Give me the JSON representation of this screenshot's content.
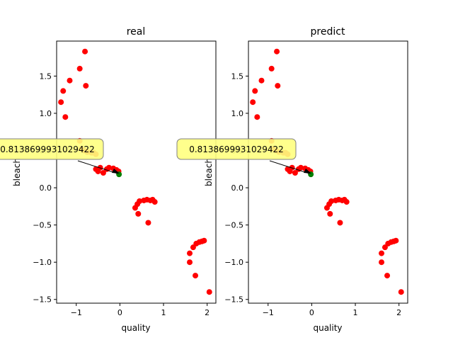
{
  "chart_data": [
    {
      "type": "scatter",
      "title": "real",
      "xlabel": "quality",
      "ylabel": "bleach",
      "xlim": [
        -1.45,
        2.2
      ],
      "ylim": [
        -1.55,
        1.97
      ],
      "xticks": [
        -1,
        0,
        1,
        2
      ],
      "xtick_labels": [
        "−1",
        "0",
        "1",
        "2"
      ],
      "yticks": [
        -1.5,
        -1.0,
        -0.5,
        0.0,
        0.5,
        1.0,
        1.5
      ],
      "ytick_labels": [
        "−1.5",
        "−1.0",
        "−0.5",
        "0.0",
        "0.5",
        "1.0",
        "1.5"
      ],
      "grid": false,
      "series": [
        {
          "color": "#ff0000",
          "points": [
            [
              -1.35,
              1.15
            ],
            [
              -1.3,
              1.3
            ],
            [
              -1.25,
              0.95
            ],
            [
              -1.15,
              1.44
            ],
            [
              -0.92,
              1.6
            ],
            [
              -0.8,
              1.83
            ],
            [
              -0.78,
              1.37
            ],
            [
              -0.92,
              0.63
            ],
            [
              -0.88,
              0.52
            ],
            [
              -0.82,
              0.5
            ],
            [
              -0.75,
              0.48
            ],
            [
              -0.65,
              0.47
            ],
            [
              -0.6,
              0.47
            ],
            [
              -0.55,
              0.45
            ],
            [
              -0.55,
              0.25
            ],
            [
              -0.5,
              0.22
            ],
            [
              -0.45,
              0.27
            ],
            [
              -0.38,
              0.2
            ],
            [
              -0.3,
              0.25
            ],
            [
              -0.25,
              0.27
            ],
            [
              -0.15,
              0.26
            ],
            [
              -0.08,
              0.24
            ],
            [
              -0.03,
              0.22
            ],
            [
              0.35,
              -0.27
            ],
            [
              0.4,
              -0.22
            ],
            [
              0.42,
              -0.35
            ],
            [
              0.45,
              -0.18
            ],
            [
              0.55,
              -0.17
            ],
            [
              0.62,
              -0.16
            ],
            [
              0.7,
              -0.17
            ],
            [
              0.75,
              -0.16
            ],
            [
              0.8,
              -0.19
            ],
            [
              0.65,
              -0.47
            ],
            [
              1.6,
              -0.88
            ],
            [
              1.6,
              -1.0
            ],
            [
              1.68,
              -0.8
            ],
            [
              1.73,
              -1.18
            ],
            [
              1.75,
              -0.75
            ],
            [
              1.82,
              -0.73
            ],
            [
              1.88,
              -0.72
            ],
            [
              1.93,
              -0.71
            ],
            [
              2.05,
              -1.4
            ]
          ]
        },
        {
          "color": "#008000",
          "points": [
            [
              -0.02,
              0.18
            ]
          ]
        }
      ],
      "annotation": {
        "text": "0.8138699931029422",
        "x": -0.02,
        "y": 0.18
      }
    },
    {
      "type": "scatter",
      "title": "predict",
      "xlabel": "quality",
      "ylabel": "bleach",
      "xlim": [
        -1.45,
        2.2
      ],
      "ylim": [
        -1.55,
        1.97
      ],
      "xticks": [
        -1,
        0,
        1,
        2
      ],
      "xtick_labels": [
        "−1",
        "0",
        "1",
        "2"
      ],
      "yticks": [
        -1.5,
        -1.0,
        -0.5,
        0.0,
        0.5,
        1.0,
        1.5
      ],
      "ytick_labels": [
        "−1.5",
        "−1.0",
        "−0.5",
        "0.0",
        "0.5",
        "1.0",
        "1.5"
      ],
      "grid": false,
      "series": [
        {
          "color": "#ff0000",
          "points": [
            [
              -1.35,
              1.15
            ],
            [
              -1.3,
              1.3
            ],
            [
              -1.25,
              0.95
            ],
            [
              -1.15,
              1.44
            ],
            [
              -0.92,
              1.6
            ],
            [
              -0.8,
              1.83
            ],
            [
              -0.78,
              1.37
            ],
            [
              -0.92,
              0.63
            ],
            [
              -0.88,
              0.52
            ],
            [
              -0.82,
              0.5
            ],
            [
              -0.75,
              0.48
            ],
            [
              -0.65,
              0.47
            ],
            [
              -0.6,
              0.47
            ],
            [
              -0.55,
              0.45
            ],
            [
              -0.55,
              0.25
            ],
            [
              -0.5,
              0.22
            ],
            [
              -0.45,
              0.27
            ],
            [
              -0.38,
              0.2
            ],
            [
              -0.3,
              0.25
            ],
            [
              -0.25,
              0.27
            ],
            [
              -0.15,
              0.26
            ],
            [
              -0.08,
              0.24
            ],
            [
              -0.03,
              0.22
            ],
            [
              0.35,
              -0.27
            ],
            [
              0.4,
              -0.22
            ],
            [
              0.42,
              -0.35
            ],
            [
              0.45,
              -0.18
            ],
            [
              0.55,
              -0.17
            ],
            [
              0.62,
              -0.16
            ],
            [
              0.7,
              -0.17
            ],
            [
              0.75,
              -0.16
            ],
            [
              0.8,
              -0.19
            ],
            [
              0.65,
              -0.47
            ],
            [
              1.6,
              -0.88
            ],
            [
              1.6,
              -1.0
            ],
            [
              1.68,
              -0.8
            ],
            [
              1.73,
              -1.18
            ],
            [
              1.75,
              -0.75
            ],
            [
              1.82,
              -0.73
            ],
            [
              1.88,
              -0.72
            ],
            [
              1.93,
              -0.71
            ],
            [
              2.05,
              -1.4
            ]
          ]
        },
        {
          "color": "#008000",
          "points": [
            [
              -0.02,
              0.18
            ]
          ]
        }
      ],
      "annotation": {
        "text": "0.8138699931029422",
        "x": -0.02,
        "y": 0.18
      }
    }
  ],
  "colors": {
    "annotation_fill": "#ffff80",
    "annotation_border": "#808080"
  }
}
